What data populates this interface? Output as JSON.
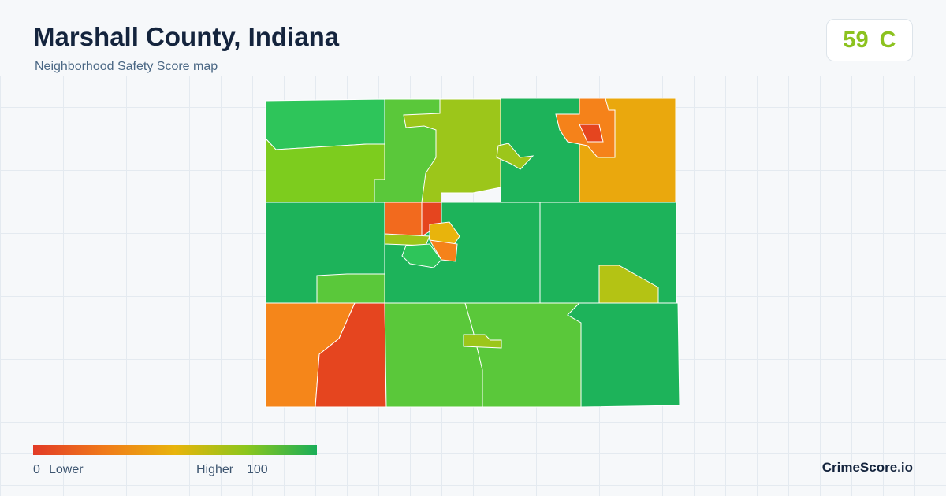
{
  "header": {
    "title": "Marshall County, Indiana",
    "subtitle": "Neighborhood Safety Score map"
  },
  "score": {
    "value": 59,
    "grade": "C"
  },
  "legend": {
    "min": 0,
    "min_label": "Lower",
    "max_label": "Higher",
    "max": 100
  },
  "brand": "CrimeScore.io"
}
